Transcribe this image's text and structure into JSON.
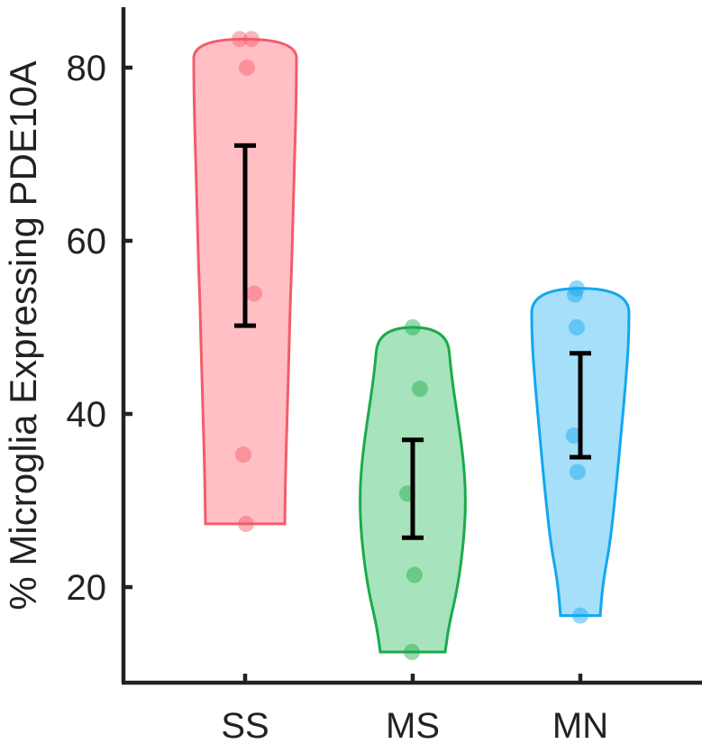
{
  "chart_data": {
    "type": "violin",
    "title": "",
    "xlabel": "",
    "ylabel": "% Microglia Expressing PDE10A",
    "categories": [
      "SS",
      "MS",
      "MN"
    ],
    "ylim": [
      10,
      87
    ],
    "yticks": [
      20,
      40,
      60,
      80
    ],
    "grid": false,
    "legend": "none",
    "series": [
      {
        "category": "SS",
        "color": "#f25c6a",
        "fill": "#ffbcc1",
        "points": [
          83.3,
          83.3,
          80.0,
          53.9,
          35.3,
          27.3
        ],
        "range": [
          27.3,
          83.3
        ],
        "errorbar": [
          50.2,
          71.0
        ]
      },
      {
        "category": "MS",
        "color": "#1aab4b",
        "fill": "#a2e2b8",
        "points": [
          50.0,
          42.9,
          30.8,
          21.4,
          12.5
        ],
        "range": [
          12.5,
          50.0
        ],
        "errorbar": [
          25.7,
          37.0
        ]
      },
      {
        "category": "MN",
        "color": "#14a6f0",
        "fill": "#a0ddfa",
        "points": [
          54.5,
          53.8,
          50.0,
          37.5,
          33.3,
          16.7
        ],
        "range": [
          16.7,
          54.5
        ],
        "errorbar": [
          35.0,
          47.0
        ]
      }
    ]
  }
}
